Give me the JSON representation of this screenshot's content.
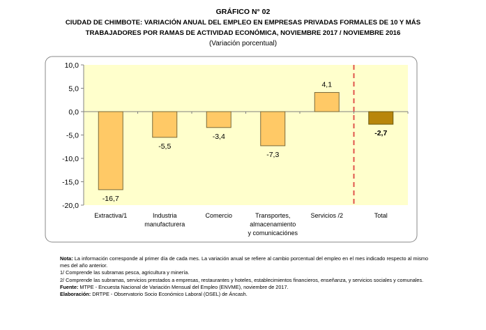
{
  "header": {
    "label": "GRÁFICO N° 02",
    "title_line1": "CIUDAD DE CHIMBOTE: VARIACIÓN ANUAL DEL EMPLEO EN EMPRESAS PRIVADAS FORMALES DE 10 Y MÁS",
    "title_line2": "TRABAJADORES POR RAMAS DE ACTIVIDAD ECONÓMICA, NOVIEMBRE 2017 / NOVIEMBRE 2016",
    "subtitle": "(Variación porcentual)"
  },
  "chart_data": {
    "type": "bar",
    "categories": [
      [
        "Extractiva/1"
      ],
      [
        "Industria",
        "manufacturera"
      ],
      [
        "Comercio"
      ],
      [
        "Transportes,",
        "almacenamiento",
        "y comunicaciónes"
      ],
      [
        "Servicios /2"
      ],
      [
        "Total"
      ]
    ],
    "values": [
      -16.7,
      -5.5,
      -3.4,
      -7.3,
      4.1,
      -2.7
    ],
    "data_labels": [
      "-16,7",
      "-5,5",
      "-3,4",
      "-7,3",
      "4,1",
      "-2,7"
    ],
    "ylim": [
      -20,
      10
    ],
    "yticks": [
      10,
      5,
      0,
      -5,
      -10,
      -15,
      -20
    ],
    "ytick_labels": [
      "10,0",
      "5,0",
      "0,0",
      "-5,0",
      "-10,0",
      "-15,0",
      "-20,0"
    ],
    "grid": false,
    "colors": {
      "bar": "#FFC966",
      "bar_total": "#B8860B",
      "plot_bg": "#FFFFCC",
      "separator": "#E0544C"
    },
    "separator_between": [
      "Servicios /2",
      "Total"
    ]
  },
  "notes": {
    "nota_label": "Nota:",
    "nota_text": " La información corresponde al primer día de cada mes. La variación anual se refiere al cambio porcentual del empleo en el mes indicado respecto al mismo mes del año anterior.",
    "note1": "1/ Comprende las subramas pesca, agricultura y minería.",
    "note2": "2/ Comprende las subramas, servicios prestados a empresas, restaurantes y hoteles, establecimientos financieros, enseñanza, y servicios sociales y comunales.",
    "fuente_label": "Fuente:",
    "fuente_text": " MTPE - Encuesta Nacional de Variación Mensual del Empleo (ENVME), noviembre de 2017.",
    "elab_label": "Elaboración:",
    "elab_text": " DRTPE - Observatorio Socio Económico Laboral (OSEL) de Áncash."
  }
}
